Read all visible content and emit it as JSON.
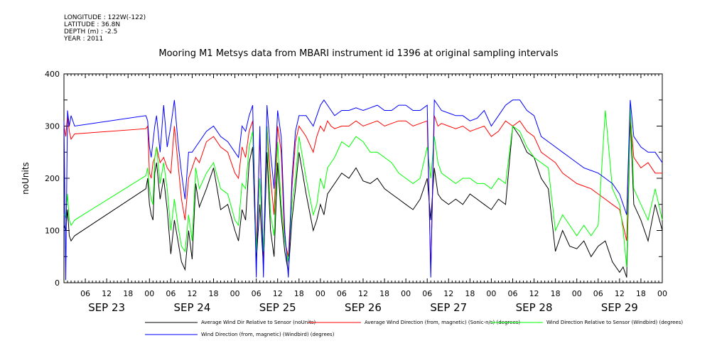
{
  "header": {
    "longitude": "LONGITUDE : 122W(-122)",
    "latitude": "LATITUDE : 36.8N",
    "depth": "DEPTH (m) : -2.5",
    "year": "YEAR : 2011"
  },
  "chart_data": {
    "type": "line",
    "title": "Mooring M1 Metsys data from MBARI instrument id 1396 at original sampling intervals",
    "ylabel": "noUnits",
    "ylim": [
      0,
      400
    ],
    "yticks": [
      "0",
      "100",
      "200",
      "300",
      "400"
    ],
    "xlim": [
      0,
      168
    ],
    "hour_ticks": [
      {
        "x": 6,
        "label": "06"
      },
      {
        "x": 12,
        "label": "12"
      },
      {
        "x": 18,
        "label": "18"
      },
      {
        "x": 24,
        "label": "00"
      },
      {
        "x": 30,
        "label": "06"
      },
      {
        "x": 36,
        "label": "12"
      },
      {
        "x": 42,
        "label": "18"
      },
      {
        "x": 48,
        "label": "00"
      },
      {
        "x": 54,
        "label": "06"
      },
      {
        "x": 60,
        "label": "12"
      },
      {
        "x": 66,
        "label": "18"
      },
      {
        "x": 72,
        "label": "00"
      },
      {
        "x": 78,
        "label": "06"
      },
      {
        "x": 84,
        "label": "12"
      },
      {
        "x": 90,
        "label": "18"
      },
      {
        "x": 96,
        "label": "00"
      },
      {
        "x": 102,
        "label": "06"
      },
      {
        "x": 108,
        "label": "12"
      },
      {
        "x": 114,
        "label": "18"
      },
      {
        "x": 120,
        "label": "00"
      },
      {
        "x": 126,
        "label": "06"
      },
      {
        "x": 132,
        "label": "12"
      },
      {
        "x": 138,
        "label": "18"
      },
      {
        "x": 144,
        "label": "00"
      },
      {
        "x": 150,
        "label": "06"
      },
      {
        "x": 156,
        "label": "12"
      },
      {
        "x": 162,
        "label": "18"
      },
      {
        "x": 168,
        "label": "00"
      }
    ],
    "day_labels": [
      {
        "x": 12,
        "label": "SEP 23"
      },
      {
        "x": 36,
        "label": "SEP 24"
      },
      {
        "x": 60,
        "label": "SEP 25"
      },
      {
        "x": 84,
        "label": "SEP 26"
      },
      {
        "x": 108,
        "label": "SEP 27"
      },
      {
        "x": 132,
        "label": "SEP 28"
      },
      {
        "x": 156,
        "label": "SEP 29"
      }
    ],
    "series": [
      {
        "name": "Average Wind Dir Relative to Sensor (noUnits)",
        "color": "#000000",
        "x": [
          0,
          0.5,
          1,
          1.5,
          2,
          2.5,
          3,
          23,
          23.5,
          24,
          24.5,
          25,
          25.5,
          26,
          27,
          28,
          29,
          30,
          31,
          32,
          33,
          34,
          35,
          36,
          37,
          38,
          40,
          42,
          44,
          46,
          48,
          49,
          50,
          51,
          52,
          53,
          54,
          55,
          56,
          57,
          58,
          59,
          60,
          61,
          62,
          63,
          64,
          65,
          66,
          68,
          70,
          71,
          72,
          73,
          74,
          75,
          76,
          78,
          80,
          82,
          84,
          86,
          88,
          90,
          92,
          94,
          96,
          98,
          100,
          102,
          103,
          104,
          105,
          106,
          108,
          110,
          112,
          114,
          116,
          118,
          120,
          122,
          124,
          126,
          128,
          130,
          132,
          134,
          136,
          138,
          140,
          142,
          144,
          146,
          148,
          150,
          152,
          154,
          156,
          157,
          158,
          159,
          160,
          162,
          164,
          166,
          168
        ],
        "values": [
          110,
          100,
          140,
          90,
          80,
          85,
          90,
          180,
          200,
          150,
          130,
          120,
          210,
          230,
          160,
          200,
          140,
          55,
          120,
          80,
          40,
          25,
          100,
          45,
          190,
          145,
          180,
          220,
          140,
          150,
          100,
          80,
          140,
          120,
          230,
          260,
          40,
          150,
          30,
          250,
          100,
          50,
          230,
          130,
          60,
          20,
          120,
          180,
          250,
          170,
          100,
          120,
          150,
          130,
          170,
          180,
          190,
          210,
          200,
          220,
          195,
          190,
          200,
          180,
          170,
          160,
          150,
          140,
          160,
          200,
          120,
          220,
          170,
          160,
          150,
          160,
          150,
          170,
          160,
          150,
          140,
          160,
          150,
          300,
          280,
          250,
          240,
          200,
          180,
          60,
          100,
          70,
          65,
          80,
          50,
          70,
          80,
          40,
          20,
          30,
          10,
          320,
          150,
          120,
          80,
          150,
          100
        ]
      },
      {
        "name": "Average Wind Direction (from, magnetic) (Sonic-n/s) (degrees)",
        "color": "#ff0000",
        "x": [
          0,
          0.5,
          1,
          1.5,
          2,
          2.5,
          3,
          23,
          23.5,
          24,
          24.5,
          25,
          25.5,
          26,
          27,
          28,
          29,
          30,
          31,
          32,
          33,
          34,
          35,
          36,
          37,
          38,
          40,
          42,
          44,
          46,
          48,
          49,
          50,
          51,
          52,
          53,
          54,
          55,
          56,
          57,
          58,
          59,
          60,
          61,
          62,
          63,
          64,
          65,
          66,
          68,
          70,
          71,
          72,
          73,
          74,
          75,
          76,
          78,
          80,
          82,
          84,
          86,
          88,
          90,
          92,
          94,
          96,
          98,
          100,
          102,
          103,
          104,
          105,
          106,
          108,
          110,
          112,
          114,
          116,
          118,
          120,
          122,
          124,
          126,
          128,
          130,
          132,
          134,
          136,
          138,
          140,
          142,
          144,
          146,
          148,
          150,
          152,
          154,
          156,
          157,
          158,
          159,
          160,
          162,
          164,
          166,
          168
        ],
        "values": [
          300,
          280,
          320,
          290,
          275,
          280,
          285,
          295,
          300,
          210,
          200,
          230,
          240,
          260,
          230,
          240,
          220,
          210,
          300,
          230,
          160,
          120,
          200,
          220,
          240,
          230,
          270,
          280,
          260,
          250,
          210,
          200,
          260,
          240,
          290,
          310,
          60,
          280,
          40,
          300,
          200,
          130,
          300,
          250,
          80,
          50,
          180,
          270,
          300,
          280,
          250,
          280,
          300,
          290,
          310,
          300,
          295,
          300,
          300,
          310,
          300,
          305,
          310,
          300,
          305,
          310,
          310,
          300,
          305,
          310,
          20,
          320,
          300,
          305,
          300,
          295,
          300,
          290,
          295,
          300,
          280,
          290,
          310,
          300,
          310,
          290,
          280,
          250,
          240,
          230,
          210,
          200,
          190,
          185,
          180,
          170,
          160,
          150,
          140,
          110,
          80,
          320,
          240,
          220,
          230,
          210,
          210
        ]
      },
      {
        "name": "Wind Direction Relative to Sensor (Windbird) (degrees)",
        "color": "#00ff00",
        "x": [
          0,
          0.5,
          1,
          1.5,
          2,
          2.5,
          3,
          23,
          23.5,
          24,
          24.5,
          25,
          25.5,
          26,
          27,
          28,
          29,
          30,
          31,
          32,
          33,
          34,
          35,
          36,
          37,
          38,
          40,
          42,
          44,
          46,
          48,
          49,
          50,
          51,
          52,
          53,
          54,
          55,
          56,
          57,
          58,
          59,
          60,
          61,
          62,
          63,
          64,
          65,
          66,
          68,
          70,
          71,
          72,
          73,
          74,
          75,
          76,
          78,
          80,
          82,
          84,
          86,
          88,
          90,
          92,
          94,
          96,
          98,
          100,
          102,
          103,
          104,
          105,
          106,
          108,
          110,
          112,
          114,
          116,
          118,
          120,
          122,
          124,
          126,
          128,
          130,
          132,
          134,
          136,
          138,
          140,
          142,
          144,
          146,
          148,
          150,
          152,
          154,
          156,
          157,
          158,
          159,
          160,
          162,
          164,
          166,
          168
        ],
        "values": [
          130,
          125,
          170,
          120,
          110,
          115,
          120,
          205,
          220,
          180,
          160,
          150,
          240,
          260,
          190,
          230,
          180,
          100,
          160,
          110,
          70,
          60,
          130,
          80,
          220,
          180,
          210,
          230,
          180,
          170,
          120,
          110,
          190,
          180,
          260,
          290,
          60,
          200,
          60,
          300,
          130,
          90,
          270,
          150,
          80,
          40,
          150,
          200,
          280,
          200,
          130,
          150,
          200,
          180,
          220,
          230,
          240,
          270,
          260,
          280,
          270,
          250,
          250,
          240,
          230,
          210,
          200,
          190,
          200,
          260,
          200,
          280,
          230,
          210,
          200,
          190,
          200,
          200,
          190,
          190,
          180,
          200,
          190,
          300,
          290,
          260,
          240,
          230,
          220,
          100,
          130,
          110,
          90,
          110,
          90,
          110,
          330,
          180,
          150,
          100,
          30,
          340,
          180,
          150,
          120,
          180,
          120
        ]
      },
      {
        "name": "Wind Direction (from, magnetic) (Windbird) (degrees)",
        "color": "#0000ff",
        "x": [
          0,
          0.5,
          1,
          1.5,
          2,
          2.5,
          3,
          23,
          23.5,
          24,
          24.5,
          25,
          25.5,
          26,
          27,
          28,
          29,
          30,
          31,
          32,
          33,
          34,
          35,
          36,
          37,
          38,
          40,
          42,
          44,
          46,
          48,
          49,
          50,
          51,
          52,
          53,
          54,
          55,
          56,
          57,
          58,
          59,
          60,
          61,
          62,
          63,
          64,
          65,
          66,
          68,
          70,
          71,
          72,
          73,
          74,
          75,
          76,
          78,
          80,
          82,
          84,
          86,
          88,
          90,
          92,
          94,
          96,
          98,
          100,
          102,
          103,
          104,
          105,
          106,
          108,
          110,
          112,
          114,
          116,
          118,
          120,
          122,
          124,
          126,
          128,
          130,
          132,
          134,
          136,
          138,
          140,
          142,
          144,
          146,
          148,
          150,
          152,
          154,
          156,
          157,
          158,
          159,
          160,
          162,
          164,
          166,
          168
        ],
        "values": [
          310,
          5,
          330,
          300,
          320,
          310,
          300,
          320,
          310,
          260,
          240,
          270,
          300,
          320,
          250,
          340,
          260,
          300,
          350,
          270,
          210,
          160,
          250,
          250,
          260,
          270,
          290,
          300,
          280,
          270,
          250,
          240,
          300,
          290,
          320,
          340,
          10,
          300,
          10,
          340,
          250,
          180,
          330,
          280,
          100,
          10,
          200,
          290,
          320,
          320,
          300,
          320,
          340,
          350,
          340,
          330,
          320,
          330,
          330,
          335,
          330,
          335,
          340,
          330,
          330,
          340,
          340,
          330,
          330,
          340,
          10,
          350,
          340,
          330,
          325,
          320,
          320,
          310,
          315,
          330,
          300,
          320,
          340,
          350,
          350,
          330,
          320,
          280,
          270,
          260,
          250,
          240,
          230,
          220,
          215,
          210,
          200,
          190,
          170,
          150,
          130,
          350,
          280,
          260,
          250,
          250,
          230
        ]
      }
    ]
  }
}
